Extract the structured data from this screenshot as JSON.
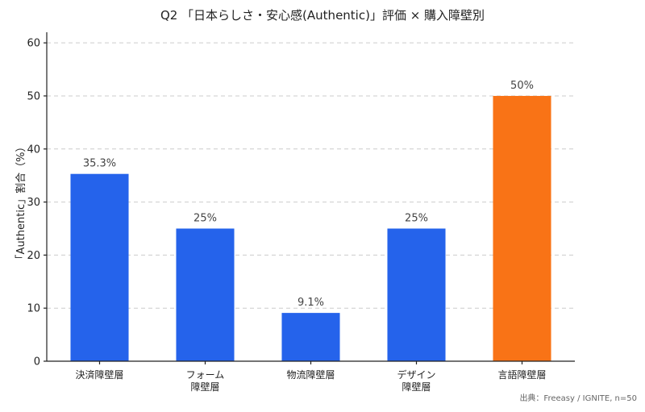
{
  "chart_data": {
    "type": "bar",
    "title": "Q2 「日本らしさ・安心感(Authentic)」評価 × 購入障壁別",
    "ylabel": "「Authentic」割合（%）",
    "xlabel": "",
    "categories": [
      [
        "決済障壁層"
      ],
      [
        "フォーム",
        "障壁層"
      ],
      [
        "物流障壁層"
      ],
      [
        "デザイン",
        "障壁層"
      ],
      [
        "言語障壁層"
      ]
    ],
    "values": [
      35.3,
      25,
      9.1,
      25,
      50
    ],
    "value_labels": [
      "35.3%",
      "25%",
      "9.1%",
      "25%",
      "50%"
    ],
    "ylim": [
      0,
      62
    ],
    "yticks": [
      0,
      10,
      20,
      30,
      40,
      50,
      60
    ],
    "colors": [
      "#2563eb",
      "#2563eb",
      "#2563eb",
      "#2563eb",
      "#f97316"
    ],
    "grid": true,
    "source": "出典：Freeasy / IGNITE, n=50"
  }
}
